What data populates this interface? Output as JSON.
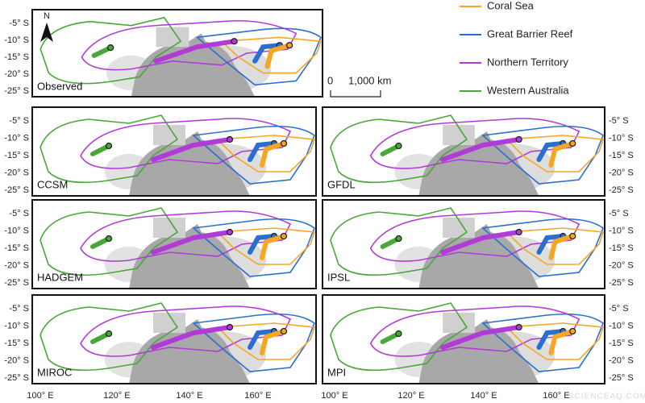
{
  "legend": [
    "Coral Sea",
    "Great Barrier Reef",
    "Northern Territory",
    "Western Australia"
  ],
  "scale_bar": {
    "start": "0",
    "end": "1,000 km"
  },
  "north": "N",
  "panels": [
    "Observed",
    "CCSM",
    "GFDL",
    "HADGEM",
    "IPSL",
    "MIROC",
    "MPI"
  ],
  "lat_labels": [
    "-5° S",
    "-10° S",
    "-15° S",
    "-20° S",
    "-25° S"
  ],
  "lon_labels": [
    "100° E",
    "120° E",
    "140° E",
    "160° E"
  ],
  "watermark": "SCIENCEAQ.COM"
}
